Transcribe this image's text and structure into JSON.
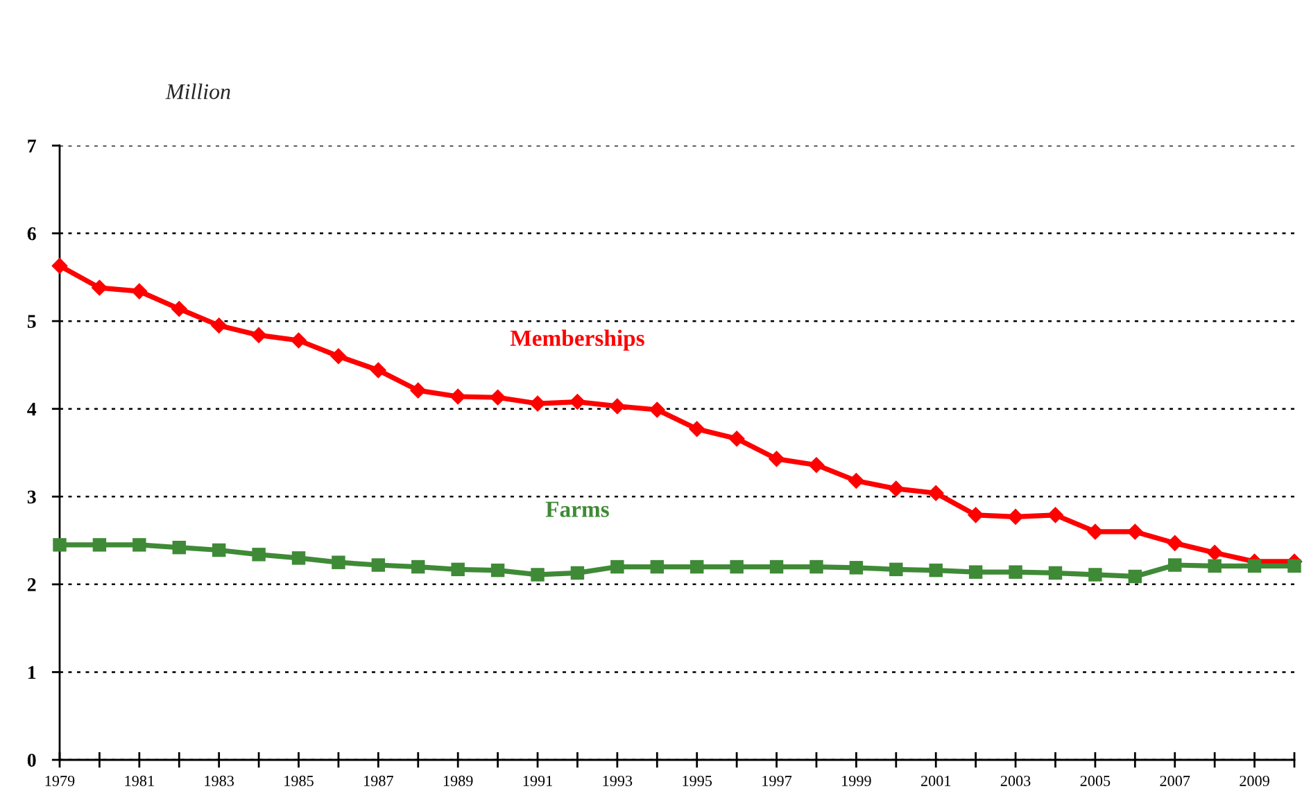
{
  "chart_data": {
    "type": "line",
    "ylabel": "Million",
    "x": [
      1979,
      1980,
      1981,
      1982,
      1983,
      1984,
      1985,
      1986,
      1987,
      1988,
      1989,
      1990,
      1991,
      1992,
      1993,
      1994,
      1995,
      1996,
      1997,
      1998,
      1999,
      2000,
      2001,
      2002,
      2003,
      2004,
      2005,
      2006,
      2007,
      2008,
      2009,
      2010
    ],
    "series": [
      {
        "name": "Memberships",
        "color": "#ff0000",
        "marker": "diamond",
        "values": [
          5.63,
          5.38,
          5.34,
          5.14,
          4.95,
          4.84,
          4.78,
          4.6,
          4.44,
          4.21,
          4.14,
          4.13,
          4.06,
          4.08,
          4.03,
          3.99,
          3.77,
          3.66,
          3.43,
          3.36,
          3.18,
          3.09,
          3.04,
          2.79,
          2.77,
          2.79,
          2.6,
          2.6,
          2.47,
          2.36,
          2.26,
          2.26
        ]
      },
      {
        "name": "Farms",
        "color": "#3f8a36",
        "marker": "square",
        "values": [
          2.45,
          2.45,
          2.45,
          2.42,
          2.39,
          2.34,
          2.3,
          2.25,
          2.22,
          2.2,
          2.17,
          2.16,
          2.11,
          2.13,
          2.2,
          2.2,
          2.2,
          2.2,
          2.2,
          2.2,
          2.19,
          2.17,
          2.16,
          2.14,
          2.14,
          2.13,
          2.11,
          2.09,
          2.22,
          2.21,
          2.21,
          2.21
        ]
      }
    ],
    "xlim": [
      1979,
      2010
    ],
    "xticks": [
      1979,
      {
        "value": 1980,
        "label": null
      },
      1981,
      {
        "value": 1982,
        "label": null
      },
      1983,
      {
        "value": 1984,
        "label": null
      },
      1985,
      {
        "value": 1986,
        "label": null
      },
      1987,
      {
        "value": 1988,
        "label": null
      },
      1989,
      {
        "value": 1990,
        "label": null
      },
      1991,
      {
        "value": 1992,
        "label": null
      },
      1993,
      {
        "value": 1994,
        "label": null
      },
      1995,
      {
        "value": 1996,
        "label": null
      },
      1997,
      {
        "value": 1998,
        "label": null
      },
      1999,
      {
        "value": 2000,
        "label": null
      },
      2001,
      {
        "value": 2002,
        "label": null
      },
      2003,
      {
        "value": 2004,
        "label": null
      },
      2005,
      {
        "value": 2006,
        "label": null
      },
      2007,
      {
        "value": 2008,
        "label": null
      },
      2009,
      {
        "value": 2010,
        "label": null
      }
    ],
    "ylim": [
      0,
      7
    ],
    "yticks": [
      0,
      1,
      2,
      3,
      4,
      5,
      6,
      7
    ],
    "grid": "y",
    "line_style": "solid"
  }
}
